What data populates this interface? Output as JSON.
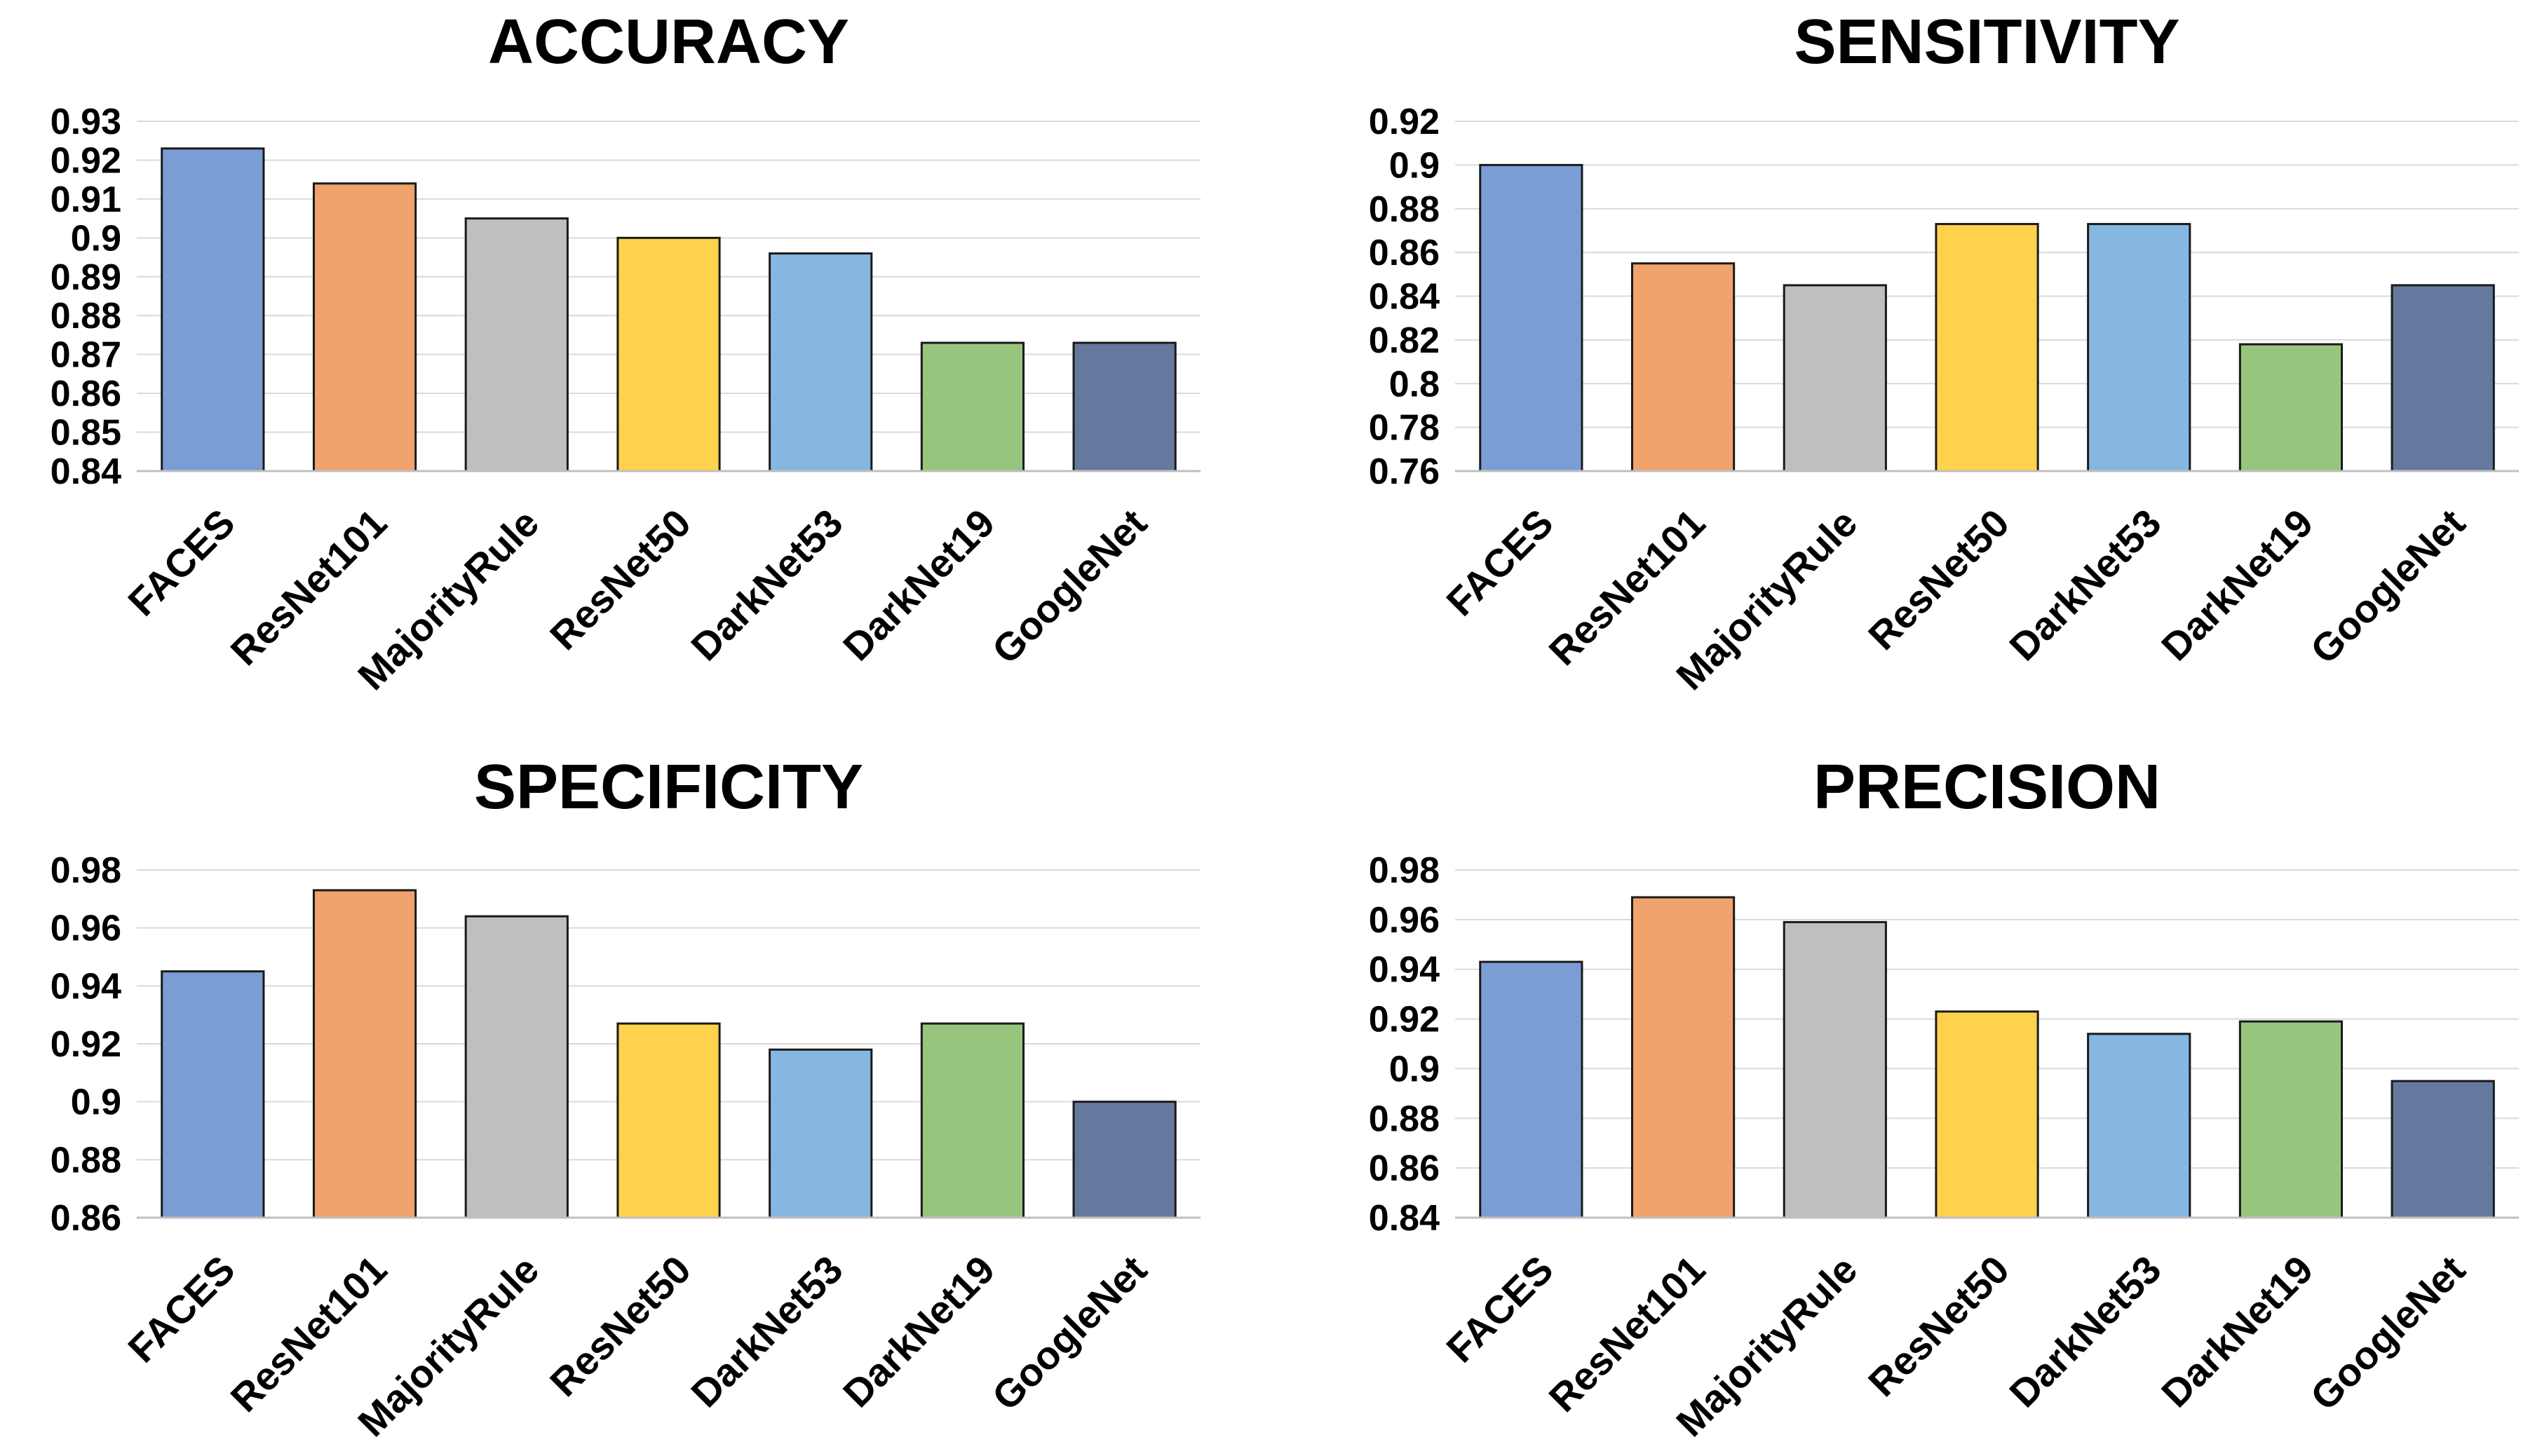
{
  "colors": [
    "#7b9dd6",
    "#f0a36c",
    "#bfbfbf",
    "#ffd24d",
    "#86b6e2",
    "#98c57e",
    "#65799f"
  ],
  "chart_data": [
    {
      "type": "bar",
      "title": "ACCURACY",
      "categories": [
        "FACES",
        "ResNet101",
        "MajorityRule",
        "ResNet50",
        "DarkNet53",
        "DarkNet19",
        "GoogleNet"
      ],
      "values": [
        0.923,
        0.914,
        0.905,
        0.9,
        0.896,
        0.873,
        0.873
      ],
      "ylim": [
        0.84,
        0.93
      ],
      "yticks": [
        0.84,
        0.85,
        0.86,
        0.87,
        0.88,
        0.89,
        0.9,
        0.91,
        0.92,
        0.93
      ],
      "ytick_labels": [
        "0.84",
        "0.85",
        "0.86",
        "0.87",
        "0.88",
        "0.89",
        "0.9",
        "0.91",
        "0.92",
        "0.93"
      ],
      "xlabel": "",
      "ylabel": "",
      "grid": true,
      "legend": "none"
    },
    {
      "type": "bar",
      "title": "SENSITIVITY",
      "categories": [
        "FACES",
        "ResNet101",
        "MajorityRule",
        "ResNet50",
        "DarkNet53",
        "DarkNet19",
        "GoogleNet"
      ],
      "values": [
        0.9,
        0.855,
        0.845,
        0.873,
        0.873,
        0.818,
        0.845
      ],
      "ylim": [
        0.76,
        0.92
      ],
      "yticks": [
        0.76,
        0.78,
        0.8,
        0.82,
        0.84,
        0.86,
        0.88,
        0.9,
        0.92
      ],
      "ytick_labels": [
        "0.76",
        "0.78",
        "0.8",
        "0.82",
        "0.84",
        "0.86",
        "0.88",
        "0.9",
        "0.92"
      ],
      "xlabel": "",
      "ylabel": "",
      "grid": true,
      "legend": "none"
    },
    {
      "type": "bar",
      "title": "SPECIFICITY",
      "categories": [
        "FACES",
        "ResNet101",
        "MajorityRule",
        "ResNet50",
        "DarkNet53",
        "DarkNet19",
        "GoogleNet"
      ],
      "values": [
        0.945,
        0.973,
        0.964,
        0.927,
        0.918,
        0.927,
        0.9
      ],
      "ylim": [
        0.86,
        0.98
      ],
      "yticks": [
        0.86,
        0.88,
        0.9,
        0.92,
        0.94,
        0.96,
        0.98
      ],
      "ytick_labels": [
        "0.86",
        "0.88",
        "0.9",
        "0.92",
        "0.94",
        "0.96",
        "0.98"
      ],
      "xlabel": "",
      "ylabel": "",
      "grid": true,
      "legend": "none"
    },
    {
      "type": "bar",
      "title": "PRECISION",
      "categories": [
        "FACES",
        "ResNet101",
        "MajorityRule",
        "ResNet50",
        "DarkNet53",
        "DarkNet19",
        "GoogleNet"
      ],
      "values": [
        0.943,
        0.969,
        0.959,
        0.923,
        0.914,
        0.919,
        0.895
      ],
      "ylim": [
        0.84,
        0.98
      ],
      "yticks": [
        0.84,
        0.86,
        0.88,
        0.9,
        0.92,
        0.94,
        0.96,
        0.98
      ],
      "ytick_labels": [
        "0.84",
        "0.86",
        "0.88",
        "0.9",
        "0.92",
        "0.94",
        "0.96",
        "0.98"
      ],
      "xlabel": "",
      "ylabel": "",
      "grid": true,
      "legend": "none"
    }
  ]
}
